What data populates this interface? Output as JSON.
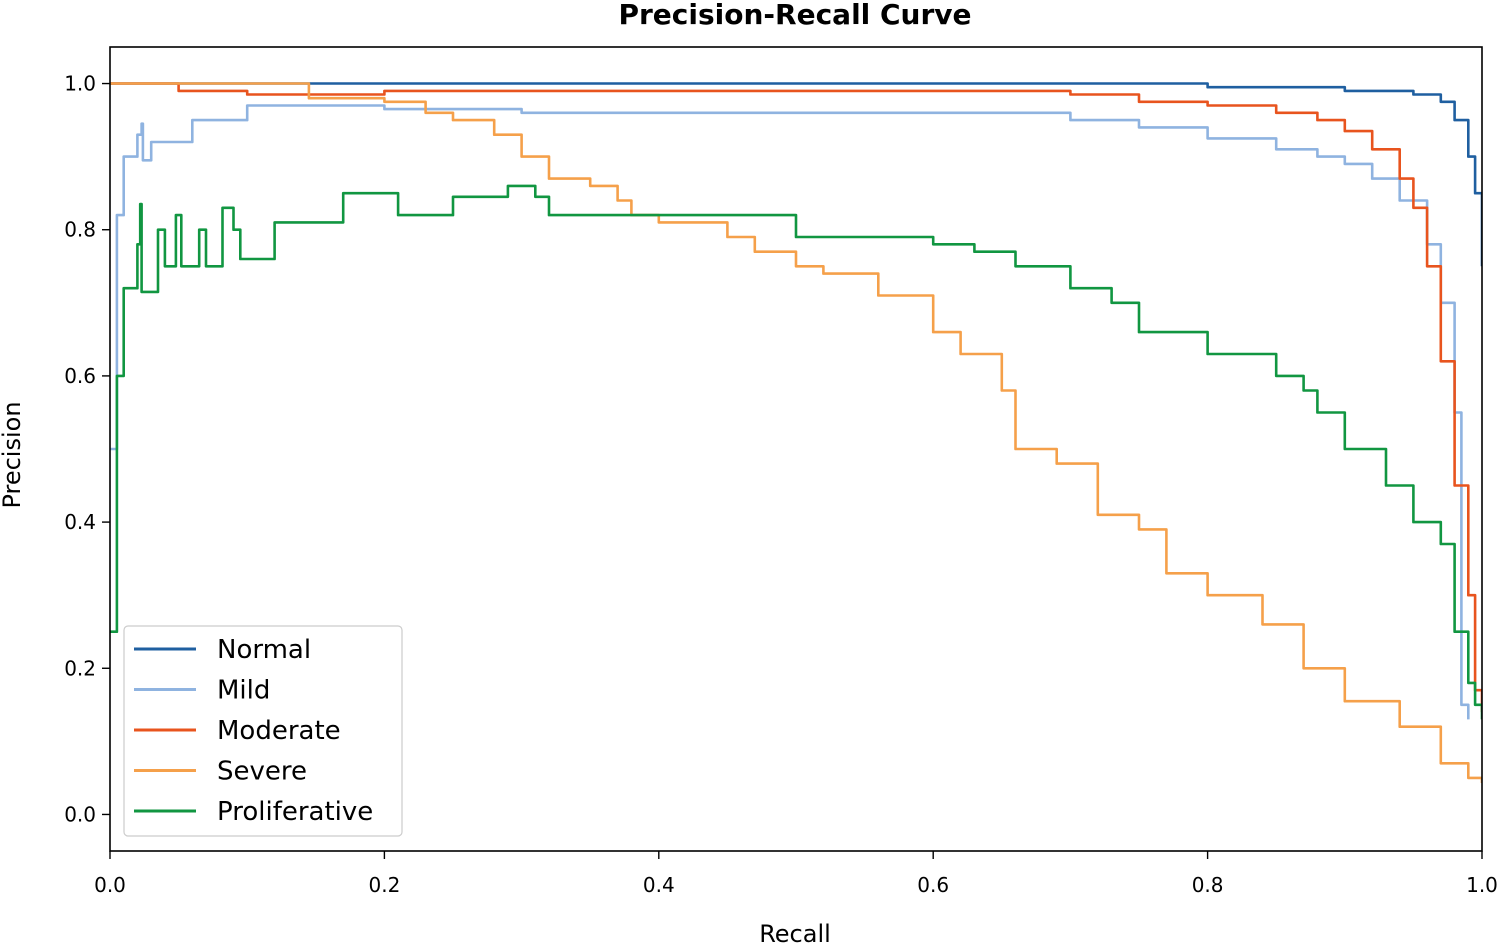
{
  "chart_data": {
    "type": "line",
    "title": "Precision-Recall Curve",
    "xlabel": "Recall",
    "ylabel": "Precision",
    "xlim": [
      0.0,
      1.0
    ],
    "ylim": [
      -0.05,
      1.05
    ],
    "xticks": [
      "0.0",
      "0.2",
      "0.4",
      "0.6",
      "0.8",
      "1.0"
    ],
    "yticks": [
      "0.0",
      "0.2",
      "0.4",
      "0.6",
      "0.8",
      "1.0"
    ],
    "grid": false,
    "legend_position": "lower-left",
    "series": [
      {
        "name": "Normal",
        "color": "#1f5fa0",
        "points": [
          [
            0.0,
            1.0
          ],
          [
            0.5,
            1.0
          ],
          [
            0.8,
            0.995
          ],
          [
            0.9,
            0.99
          ],
          [
            0.95,
            0.985
          ],
          [
            0.97,
            0.975
          ],
          [
            0.98,
            0.95
          ],
          [
            0.99,
            0.9
          ],
          [
            0.995,
            0.85
          ],
          [
            1.0,
            0.75
          ]
        ]
      },
      {
        "name": "Mild",
        "color": "#8fb3e0",
        "points": [
          [
            0.0,
            0.5
          ],
          [
            0.005,
            0.82
          ],
          [
            0.01,
            0.9
          ],
          [
            0.02,
            0.93
          ],
          [
            0.023,
            0.945
          ],
          [
            0.024,
            0.895
          ],
          [
            0.03,
            0.92
          ],
          [
            0.06,
            0.95
          ],
          [
            0.1,
            0.97
          ],
          [
            0.15,
            0.97
          ],
          [
            0.2,
            0.965
          ],
          [
            0.3,
            0.96
          ],
          [
            0.4,
            0.96
          ],
          [
            0.5,
            0.96
          ],
          [
            0.6,
            0.96
          ],
          [
            0.7,
            0.95
          ],
          [
            0.75,
            0.94
          ],
          [
            0.8,
            0.925
          ],
          [
            0.85,
            0.91
          ],
          [
            0.88,
            0.9
          ],
          [
            0.9,
            0.89
          ],
          [
            0.92,
            0.87
          ],
          [
            0.94,
            0.84
          ],
          [
            0.96,
            0.78
          ],
          [
            0.97,
            0.7
          ],
          [
            0.98,
            0.55
          ],
          [
            0.985,
            0.15
          ],
          [
            0.99,
            0.13
          ]
        ]
      },
      {
        "name": "Moderate",
        "color": "#e8541e",
        "points": [
          [
            0.0,
            1.0
          ],
          [
            0.05,
            0.99
          ],
          [
            0.1,
            0.985
          ],
          [
            0.2,
            0.99
          ],
          [
            0.3,
            0.99
          ],
          [
            0.4,
            0.99
          ],
          [
            0.5,
            0.99
          ],
          [
            0.6,
            0.99
          ],
          [
            0.7,
            0.985
          ],
          [
            0.75,
            0.975
          ],
          [
            0.8,
            0.97
          ],
          [
            0.85,
            0.96
          ],
          [
            0.88,
            0.95
          ],
          [
            0.9,
            0.935
          ],
          [
            0.92,
            0.91
          ],
          [
            0.94,
            0.87
          ],
          [
            0.95,
            0.83
          ],
          [
            0.96,
            0.75
          ],
          [
            0.97,
            0.62
          ],
          [
            0.98,
            0.45
          ],
          [
            0.99,
            0.3
          ],
          [
            0.995,
            0.17
          ],
          [
            1.0,
            0.14
          ]
        ]
      },
      {
        "name": "Severe",
        "color": "#f5a04a",
        "points": [
          [
            0.0,
            1.0
          ],
          [
            0.14,
            1.0
          ],
          [
            0.145,
            0.98
          ],
          [
            0.2,
            0.975
          ],
          [
            0.23,
            0.96
          ],
          [
            0.25,
            0.95
          ],
          [
            0.28,
            0.93
          ],
          [
            0.3,
            0.9
          ],
          [
            0.32,
            0.87
          ],
          [
            0.35,
            0.86
          ],
          [
            0.37,
            0.84
          ],
          [
            0.38,
            0.82
          ],
          [
            0.4,
            0.81
          ],
          [
            0.45,
            0.79
          ],
          [
            0.47,
            0.77
          ],
          [
            0.5,
            0.75
          ],
          [
            0.52,
            0.74
          ],
          [
            0.56,
            0.71
          ],
          [
            0.6,
            0.66
          ],
          [
            0.62,
            0.63
          ],
          [
            0.65,
            0.58
          ],
          [
            0.66,
            0.5
          ],
          [
            0.69,
            0.48
          ],
          [
            0.72,
            0.41
          ],
          [
            0.75,
            0.39
          ],
          [
            0.77,
            0.33
          ],
          [
            0.8,
            0.3
          ],
          [
            0.84,
            0.26
          ],
          [
            0.87,
            0.2
          ],
          [
            0.9,
            0.155
          ],
          [
            0.94,
            0.12
          ],
          [
            0.97,
            0.07
          ],
          [
            0.99,
            0.05
          ],
          [
            1.0,
            0.043
          ]
        ]
      },
      {
        "name": "Proliferative",
        "color": "#119641",
        "points": [
          [
            0.0,
            0.25
          ],
          [
            0.005,
            0.6
          ],
          [
            0.01,
            0.72
          ],
          [
            0.02,
            0.78
          ],
          [
            0.022,
            0.835
          ],
          [
            0.023,
            0.715
          ],
          [
            0.035,
            0.8
          ],
          [
            0.04,
            0.75
          ],
          [
            0.048,
            0.82
          ],
          [
            0.052,
            0.75
          ],
          [
            0.065,
            0.8
          ],
          [
            0.07,
            0.75
          ],
          [
            0.082,
            0.83
          ],
          [
            0.09,
            0.8
          ],
          [
            0.095,
            0.76
          ],
          [
            0.12,
            0.81
          ],
          [
            0.17,
            0.85
          ],
          [
            0.2,
            0.85
          ],
          [
            0.21,
            0.82
          ],
          [
            0.25,
            0.845
          ],
          [
            0.29,
            0.86
          ],
          [
            0.31,
            0.845
          ],
          [
            0.32,
            0.82
          ],
          [
            0.4,
            0.82
          ],
          [
            0.5,
            0.79
          ],
          [
            0.55,
            0.79
          ],
          [
            0.6,
            0.78
          ],
          [
            0.63,
            0.77
          ],
          [
            0.66,
            0.75
          ],
          [
            0.7,
            0.72
          ],
          [
            0.73,
            0.7
          ],
          [
            0.75,
            0.66
          ],
          [
            0.8,
            0.63
          ],
          [
            0.85,
            0.6
          ],
          [
            0.87,
            0.58
          ],
          [
            0.88,
            0.55
          ],
          [
            0.9,
            0.5
          ],
          [
            0.93,
            0.45
          ],
          [
            0.95,
            0.4
          ],
          [
            0.97,
            0.37
          ],
          [
            0.98,
            0.25
          ],
          [
            0.99,
            0.18
          ],
          [
            0.995,
            0.15
          ],
          [
            1.0,
            0.13
          ]
        ]
      }
    ]
  }
}
